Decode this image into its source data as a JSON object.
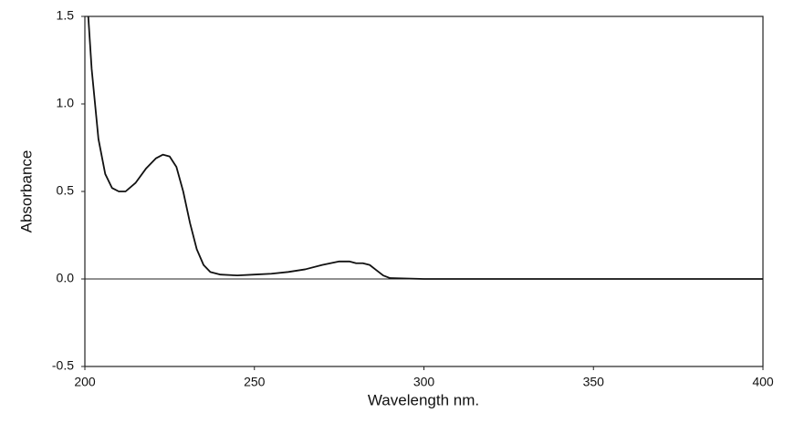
{
  "chart_data": {
    "type": "line",
    "x_label": "Wavelength nm.",
    "y_label": "Absorbance",
    "x": [
      201,
      202,
      204,
      206,
      208,
      210,
      212,
      215,
      218,
      221,
      223,
      225,
      227,
      229,
      231,
      233,
      235,
      237,
      240,
      245,
      250,
      255,
      260,
      265,
      270,
      275,
      278,
      280,
      282,
      284,
      286,
      288,
      290,
      300,
      350,
      400
    ],
    "series": [
      {
        "name": "Absorbance",
        "color": "#111111",
        "values": [
          1.5,
          1.2,
          0.8,
          0.6,
          0.52,
          0.5,
          0.5,
          0.55,
          0.63,
          0.69,
          0.71,
          0.7,
          0.64,
          0.5,
          0.32,
          0.17,
          0.08,
          0.04,
          0.025,
          0.02,
          0.025,
          0.03,
          0.04,
          0.055,
          0.08,
          0.1,
          0.1,
          0.09,
          0.09,
          0.08,
          0.05,
          0.02,
          0.005,
          0.0,
          0.0,
          0.0
        ]
      }
    ],
    "xlim": [
      200,
      400
    ],
    "xticks": [
      200,
      250,
      300,
      350,
      400
    ],
    "ylim": [
      -0.5,
      1.5
    ],
    "yticks": [
      {
        "value": -0.5,
        "label": "-0.5"
      },
      {
        "value": 0,
        "label": "0.0"
      },
      {
        "value": 0.5,
        "label": "0.5"
      },
      {
        "value": 1,
        "label": "1.0"
      },
      {
        "value": 1.5,
        "label": "1.5"
      }
    ],
    "zero_line": true,
    "grid": false
  }
}
